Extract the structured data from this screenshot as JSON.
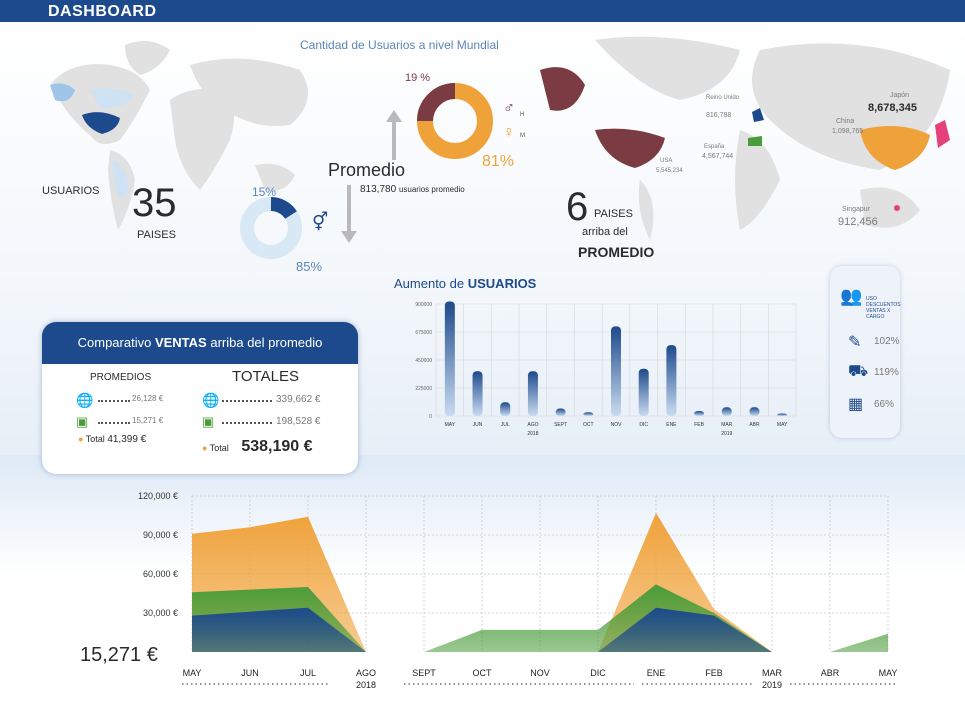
{
  "header": {
    "title": "DASHBOARD"
  },
  "world": {
    "title": "Cantidad de Usuarios a nivel Mundial",
    "usuarios_label": "USUARIOS",
    "countries_count": "35",
    "countries_label": "PAISES",
    "donut_small": {
      "pct_top": "15%",
      "pct_bottom": "85%"
    },
    "promedio_label": "Promedio",
    "promedio_value": "813,780",
    "promedio_suffix": "usuarios promedio",
    "donut_big": {
      "pct_top": "19 %",
      "pct_bottom": "81%",
      "h": "H",
      "m": "M"
    },
    "above_count": "6",
    "above_line1": "PAISES",
    "above_line2": "arriba del",
    "above_line3": "PROMEDIO",
    "countries": [
      {
        "name": "Reino Unido",
        "value": "816,788"
      },
      {
        "name": "Japón",
        "value": "8,678,345"
      },
      {
        "name": "China",
        "value": "1,098,765"
      },
      {
        "name": "USA",
        "value": "5,545,234"
      },
      {
        "name": "España",
        "value": "4,567,744"
      },
      {
        "name": "Singapur",
        "value": "912,456"
      }
    ],
    "colors": {
      "blue": "#1d4a8c",
      "orange": "#f0a23a",
      "maroon": "#7a3b43",
      "pink": "#e6407a",
      "green": "#4a9c3a"
    }
  },
  "ventas": {
    "title_pre": "Comparativo",
    "title_bold": "VENTAS",
    "title_post": "arriba del promedio",
    "promedios_label": "PROMEDIOS",
    "totales_label": "TOTALES",
    "prom_web": "26,128 €",
    "prom_tienda": "15,271 €",
    "prom_total_label": "Total",
    "prom_total": "41,399 €",
    "tot_web": "339,662 €",
    "tot_tienda": "198,528 €",
    "tot_total_label": "Total",
    "tot_total": "538,190 €"
  },
  "side": {
    "title": "USO DESCUENTOS VENTAS X CARGO",
    "items": [
      "102%",
      "119%",
      "66%"
    ]
  },
  "big_value": "15,271 €",
  "chart_data": [
    {
      "type": "bar",
      "title_pre": "Aumento de",
      "title_bold": "USUARIOS",
      "categories": [
        "MAY",
        "JUN",
        "JUL",
        "AGO",
        "SEPT",
        "OCT",
        "NOV",
        "DIC",
        "ENE",
        "FEB",
        "MAR",
        "ABR",
        "MAY"
      ],
      "values": [
        920000,
        360000,
        110000,
        360000,
        60000,
        30000,
        720000,
        380000,
        570000,
        40000,
        70000,
        70000,
        20000
      ],
      "yticks": [
        "0",
        "225000",
        "450000",
        "675000",
        "900000"
      ],
      "ylim": [
        0,
        900000
      ],
      "year_labels": [
        {
          "label": "2018",
          "index": 3
        },
        {
          "label": "2019",
          "index": 10
        }
      ],
      "grid": true
    },
    {
      "type": "area",
      "categories": [
        "MAY",
        "JUN",
        "JUL",
        "AGO",
        "SEPT",
        "OCT",
        "NOV",
        "DIC",
        "ENE",
        "FEB",
        "MAR",
        "ABR",
        "MAY"
      ],
      "series": [
        {
          "name": "",
          "color": "#f0a23a",
          "values": [
            91000,
            96000,
            104000,
            0,
            0,
            0,
            0,
            0,
            107000,
            33000,
            0,
            0,
            0
          ]
        },
        {
          "name": "",
          "color": "#4a9c3a",
          "values": [
            46000,
            48000,
            50000,
            0,
            0,
            17000,
            17000,
            17000,
            52000,
            30000,
            0,
            0,
            14000
          ]
        },
        {
          "name": "",
          "color": "#1d4a8c",
          "values": [
            28000,
            31000,
            34000,
            0,
            0,
            0,
            0,
            0,
            34000,
            28000,
            0,
            0,
            0
          ]
        }
      ],
      "yticks": [
        "30,000 €",
        "60,000 €",
        "90,000 €",
        "120,000 €"
      ],
      "ylim": [
        0,
        120000
      ],
      "year_labels": [
        {
          "label": "2018",
          "index": 3
        },
        {
          "label": "2019",
          "index": 10
        }
      ],
      "grid": true
    }
  ]
}
